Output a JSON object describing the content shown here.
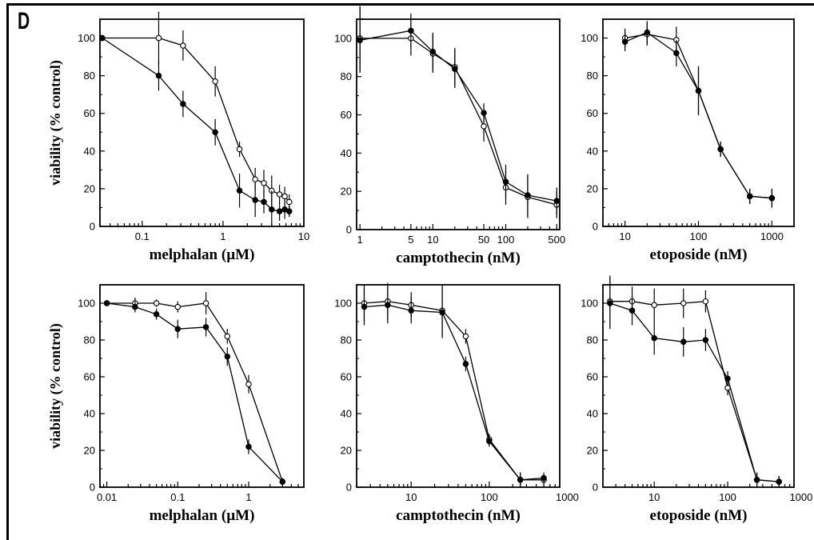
{
  "panel_letter": "D",
  "chart_data": [
    {
      "type": "line",
      "row": 0,
      "xscale": "log",
      "xlim": [
        0.03,
        10
      ],
      "ylim": [
        0,
        110
      ],
      "xticks": [
        0.1,
        1,
        10
      ],
      "xtick_labels": [
        "0.1",
        "1",
        "10"
      ],
      "yticks": [
        0,
        20,
        40,
        60,
        80,
        100
      ],
      "ytick_labels": [
        "0",
        "20",
        "40",
        "60",
        "80",
        "100"
      ],
      "xlabel": "melphalan (µM)",
      "ylabel": "viability (% control)",
      "series": [
        {
          "marker": "open",
          "points": [
            {
              "x": 0.032,
              "y": 100,
              "err": 0
            },
            {
              "x": 0.16,
              "y": 100,
              "err": 14
            },
            {
              "x": 0.32,
              "y": 96,
              "err": 8
            },
            {
              "x": 0.8,
              "y": 77,
              "err": 8
            },
            {
              "x": 1.6,
              "y": 41,
              "err": 4
            },
            {
              "x": 2.5,
              "y": 25,
              "err": 6
            },
            {
              "x": 3.2,
              "y": 23,
              "err": 7
            },
            {
              "x": 4.0,
              "y": 19,
              "err": 8
            },
            {
              "x": 5.0,
              "y": 17,
              "err": 5
            },
            {
              "x": 5.8,
              "y": 16,
              "err": 5
            },
            {
              "x": 6.6,
              "y": 13,
              "err": 4
            }
          ]
        },
        {
          "marker": "filled",
          "points": [
            {
              "x": 0.032,
              "y": 100,
              "err": 0
            },
            {
              "x": 0.16,
              "y": 80,
              "err": 8
            },
            {
              "x": 0.32,
              "y": 65,
              "err": 7
            },
            {
              "x": 0.8,
              "y": 50,
              "err": 7
            },
            {
              "x": 1.6,
              "y": 19,
              "err": 9
            },
            {
              "x": 2.5,
              "y": 14,
              "err": 9
            },
            {
              "x": 3.2,
              "y": 13,
              "err": 6
            },
            {
              "x": 4.0,
              "y": 9,
              "err": 10
            },
            {
              "x": 5.0,
              "y": 8,
              "err": 5
            },
            {
              "x": 5.8,
              "y": 9,
              "err": 5
            },
            {
              "x": 6.6,
              "y": 8,
              "err": 3
            }
          ]
        }
      ]
    },
    {
      "type": "line",
      "row": 0,
      "xscale": "log",
      "xlim": [
        0.9,
        550
      ],
      "ylim": [
        0,
        110
      ],
      "xticks": [
        1,
        5,
        10,
        50,
        100,
        500
      ],
      "xtick_labels": [
        "1",
        "5",
        "10",
        "50",
        "100",
        "500"
      ],
      "yticks": [
        0,
        20,
        40,
        60,
        80,
        100
      ],
      "ytick_labels": [
        "0",
        "20",
        "40",
        "60",
        "80",
        "100"
      ],
      "xlabel": "camptothecin (nM)",
      "ylabel": "",
      "series": [
        {
          "marker": "open",
          "points": [
            {
              "x": 1,
              "y": 100,
              "err": 17
            },
            {
              "x": 5,
              "y": 100,
              "err": 9
            },
            {
              "x": 10,
              "y": 92,
              "err": 10
            },
            {
              "x": 20,
              "y": 85,
              "err": 10
            },
            {
              "x": 50,
              "y": 54,
              "err": 8
            },
            {
              "x": 100,
              "y": 22,
              "err": 9
            },
            {
              "x": 200,
              "y": 17,
              "err": 11
            },
            {
              "x": 500,
              "y": 13,
              "err": 7
            }
          ]
        },
        {
          "marker": "filled",
          "points": [
            {
              "x": 1,
              "y": 99,
              "err": 17
            },
            {
              "x": 5,
              "y": 104,
              "err": 9
            },
            {
              "x": 10,
              "y": 93,
              "err": 10
            },
            {
              "x": 20,
              "y": 84,
              "err": 10
            },
            {
              "x": 50,
              "y": 61,
              "err": 5
            },
            {
              "x": 100,
              "y": 25,
              "err": 9
            },
            {
              "x": 200,
              "y": 18,
              "err": 11
            },
            {
              "x": 500,
              "y": 15,
              "err": 7
            }
          ]
        }
      ]
    },
    {
      "type": "line",
      "row": 0,
      "xscale": "log",
      "xlim": [
        5,
        2000
      ],
      "ylim": [
        0,
        110
      ],
      "xticks": [
        10,
        100,
        1000
      ],
      "xtick_labels": [
        "10",
        "100",
        "1000"
      ],
      "yticks": [
        0,
        20,
        40,
        60,
        80,
        100
      ],
      "ytick_labels": [
        "0",
        "20",
        "40",
        "60",
        "80",
        "100"
      ],
      "xlabel": "etoposide (nM)",
      "ylabel": "",
      "series": [
        {
          "marker": "open",
          "points": [
            {
              "x": 10,
              "y": 100,
              "err": 5
            },
            {
              "x": 20,
              "y": 102,
              "err": 6
            },
            {
              "x": 50,
              "y": 99,
              "err": 7
            },
            {
              "x": 100,
              "y": 72,
              "err": 13
            },
            {
              "x": 200,
              "y": 41,
              "err": 4
            },
            {
              "x": 500,
              "y": 16,
              "err": 4
            },
            {
              "x": 1000,
              "y": 15,
              "err": 5
            }
          ]
        },
        {
          "marker": "filled",
          "points": [
            {
              "x": 10,
              "y": 98,
              "err": 5
            },
            {
              "x": 20,
              "y": 103,
              "err": 6
            },
            {
              "x": 50,
              "y": 92,
              "err": 7
            },
            {
              "x": 100,
              "y": 72,
              "err": 13
            },
            {
              "x": 200,
              "y": 41,
              "err": 4
            },
            {
              "x": 500,
              "y": 16,
              "err": 4
            },
            {
              "x": 1000,
              "y": 15,
              "err": 5
            }
          ]
        }
      ]
    },
    {
      "type": "line",
      "row": 1,
      "xscale": "log",
      "xlim": [
        0.008,
        6
      ],
      "ylim": [
        0,
        110
      ],
      "xticks": [
        0.01,
        0.1,
        1
      ],
      "xtick_labels": [
        "0.01",
        "0.1",
        "1"
      ],
      "yticks": [
        0,
        20,
        40,
        60,
        80,
        100
      ],
      "ytick_labels": [
        "0",
        "20",
        "40",
        "60",
        "80",
        "100"
      ],
      "xlabel": "melphalan (µM)",
      "ylabel": "viability (% control)",
      "series": [
        {
          "marker": "open",
          "points": [
            {
              "x": 0.01,
              "y": 100,
              "err": 1
            },
            {
              "x": 0.025,
              "y": 100,
              "err": 3
            },
            {
              "x": 0.05,
              "y": 100,
              "err": 2
            },
            {
              "x": 0.1,
              "y": 98,
              "err": 3
            },
            {
              "x": 0.25,
              "y": 100,
              "err": 6
            },
            {
              "x": 0.5,
              "y": 82,
              "err": 4
            },
            {
              "x": 1,
              "y": 56,
              "err": 5
            },
            {
              "x": 3,
              "y": 3,
              "err": 2
            }
          ]
        },
        {
          "marker": "filled",
          "points": [
            {
              "x": 0.01,
              "y": 100,
              "err": 1
            },
            {
              "x": 0.025,
              "y": 98,
              "err": 3
            },
            {
              "x": 0.05,
              "y": 94,
              "err": 3
            },
            {
              "x": 0.1,
              "y": 86,
              "err": 5
            },
            {
              "x": 0.25,
              "y": 87,
              "err": 5
            },
            {
              "x": 0.5,
              "y": 71,
              "err": 5
            },
            {
              "x": 1,
              "y": 22,
              "err": 4
            },
            {
              "x": 3,
              "y": 3,
              "err": 2
            }
          ]
        }
      ]
    },
    {
      "type": "line",
      "row": 1,
      "xscale": "log",
      "xlim": [
        2,
        800
      ],
      "ylim": [
        0,
        110
      ],
      "xticks": [
        10,
        100,
        1000
      ],
      "xtick_labels": [
        "10",
        "100",
        "1000"
      ],
      "yticks": [
        0,
        20,
        40,
        60,
        80,
        100
      ],
      "ytick_labels": [
        "0",
        "20",
        "40",
        "60",
        "80",
        "100"
      ],
      "xlabel": "camptothecin (nM)",
      "ylabel": "",
      "series": [
        {
          "marker": "open",
          "points": [
            {
              "x": 2.5,
              "y": 100,
              "err": 10
            },
            {
              "x": 5,
              "y": 101,
              "err": 10
            },
            {
              "x": 10,
              "y": 99,
              "err": 7
            },
            {
              "x": 25,
              "y": 96,
              "err": 14
            },
            {
              "x": 50,
              "y": 82,
              "err": 4
            },
            {
              "x": 100,
              "y": 26,
              "err": 3
            },
            {
              "x": 250,
              "y": 4,
              "err": 4
            },
            {
              "x": 500,
              "y": 4,
              "err": 3
            }
          ]
        },
        {
          "marker": "filled",
          "points": [
            {
              "x": 2.5,
              "y": 98,
              "err": 10
            },
            {
              "x": 5,
              "y": 99,
              "err": 10
            },
            {
              "x": 10,
              "y": 96,
              "err": 7
            },
            {
              "x": 25,
              "y": 95,
              "err": 14
            },
            {
              "x": 50,
              "y": 67,
              "err": 4
            },
            {
              "x": 100,
              "y": 25,
              "err": 3
            },
            {
              "x": 250,
              "y": 4,
              "err": 4
            },
            {
              "x": 500,
              "y": 5,
              "err": 3
            }
          ]
        }
      ]
    },
    {
      "type": "line",
      "row": 1,
      "xscale": "log",
      "xlim": [
        2,
        800
      ],
      "ylim": [
        0,
        110
      ],
      "xticks": [
        10,
        100,
        1000
      ],
      "xtick_labels": [
        "10",
        "100",
        "1000"
      ],
      "yticks": [
        0,
        20,
        40,
        60,
        80,
        100
      ],
      "ytick_labels": [
        "0",
        "20",
        "40",
        "60",
        "80",
        "100"
      ],
      "xlabel": "etoposide (nM)",
      "ylabel": "",
      "series": [
        {
          "marker": "open",
          "points": [
            {
              "x": 2.5,
              "y": 101,
              "err": 14
            },
            {
              "x": 5,
              "y": 101,
              "err": 8
            },
            {
              "x": 10,
              "y": 99,
              "err": 9
            },
            {
              "x": 25,
              "y": 100,
              "err": 8
            },
            {
              "x": 50,
              "y": 101,
              "err": 6
            },
            {
              "x": 100,
              "y": 54,
              "err": 4
            },
            {
              "x": 250,
              "y": 4,
              "err": 4
            },
            {
              "x": 500,
              "y": 3,
              "err": 3
            }
          ]
        },
        {
          "marker": "filled",
          "points": [
            {
              "x": 2.5,
              "y": 100,
              "err": 14
            },
            {
              "x": 5,
              "y": 96,
              "err": 8
            },
            {
              "x": 10,
              "y": 81,
              "err": 9
            },
            {
              "x": 25,
              "y": 79,
              "err": 8
            },
            {
              "x": 50,
              "y": 80,
              "err": 6
            },
            {
              "x": 100,
              "y": 59,
              "err": 4
            },
            {
              "x": 250,
              "y": 4,
              "err": 4
            },
            {
              "x": 500,
              "y": 3,
              "err": 3
            }
          ]
        }
      ]
    }
  ]
}
